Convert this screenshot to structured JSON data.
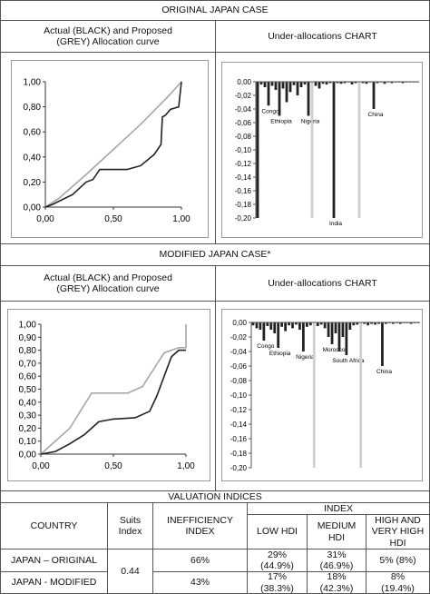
{
  "sections": [
    {
      "title": "ORIGINAL JAPAN CASE",
      "left_header": "Actual (BLACK) and Proposed (GREY) Allocation curve",
      "right_header": "Under-allocations CHART",
      "allocation_chart": {
        "type": "line",
        "xlim": [
          0,
          1
        ],
        "ylim": [
          0,
          1
        ],
        "xticks": [
          {
            "value": 0,
            "label": "0,00"
          },
          {
            "value": 0.5,
            "label": "0,50"
          },
          {
            "value": 1,
            "label": "1,00"
          }
        ],
        "yticks": [
          {
            "value": 0,
            "label": "0,00"
          },
          {
            "value": 0.2,
            "label": "0,20"
          },
          {
            "value": 0.4,
            "label": "0,40"
          },
          {
            "value": 0.6,
            "label": "0,60"
          },
          {
            "value": 0.8,
            "label": "0,80"
          },
          {
            "value": 1,
            "label": "1,00"
          }
        ],
        "series": [
          {
            "color": "#a6a6a6",
            "x": [
              0,
              0.1,
              0.3,
              0.5,
              0.7,
              0.9,
              1
            ],
            "values": [
              0,
              0.07,
              0.26,
              0.46,
              0.66,
              0.88,
              1
            ]
          },
          {
            "color": "#222222",
            "x": [
              0,
              0.05,
              0.2,
              0.25,
              0.3,
              0.35,
              0.4,
              0.6,
              0.7,
              0.8,
              0.85,
              0.86,
              0.88,
              0.92,
              0.98,
              1
            ],
            "values": [
              0,
              0.02,
              0.1,
              0.15,
              0.2,
              0.22,
              0.3,
              0.3,
              0.33,
              0.42,
              0.5,
              0.72,
              0.73,
              0.78,
              0.8,
              1
            ]
          }
        ]
      },
      "underallocation_chart": {
        "type": "bar",
        "ylim": [
          -0.2,
          0
        ],
        "yticks": [
          {
            "value": 0,
            "label": "0,00"
          },
          {
            "value": -0.02,
            "label": "-0,02"
          },
          {
            "value": -0.04,
            "label": "-0,04"
          },
          {
            "value": -0.06,
            "label": "-0,06"
          },
          {
            "value": -0.08,
            "label": "-0,08"
          },
          {
            "value": -0.1,
            "label": "-0,10"
          },
          {
            "value": -0.12,
            "label": "-0,12"
          },
          {
            "value": -0.14,
            "label": "-0,14"
          },
          {
            "value": -0.16,
            "label": "-0,16"
          },
          {
            "value": -0.18,
            "label": "-0,18"
          },
          {
            "value": -0.2,
            "label": "-0,20"
          }
        ],
        "categories": [
          null,
          null,
          null,
          "Congo",
          null,
          null,
          "Ethiopia",
          null,
          null,
          null,
          null,
          null,
          null,
          null,
          "Nigeria",
          null,
          null,
          null,
          null,
          null,
          null,
          "India",
          null,
          null,
          null,
          null,
          null,
          null,
          null,
          null,
          null,
          null,
          "China",
          null,
          null,
          null,
          null,
          null,
          null,
          null,
          null,
          null,
          null,
          null,
          null
        ],
        "values": [
          -0.2,
          -0.004,
          -0.008,
          -0.035,
          -0.006,
          -0.012,
          -0.05,
          -0.01,
          -0.03,
          -0.015,
          -0.005,
          -0.02,
          -0.008,
          -0.004,
          -0.05,
          -0.2,
          -0.006,
          -0.01,
          -0.003,
          -0.004,
          -0.002,
          -0.2,
          -0.002,
          -0.003,
          -0.002,
          -0.001,
          -0.004,
          -0.002,
          -0.2,
          -0.002,
          -0.003,
          -0.001,
          -0.04,
          -0.002,
          -0.001,
          -0.003,
          -0.001,
          -0.002,
          -0.001,
          -0.001,
          -0.002,
          -0.001,
          -0.001,
          -0.001,
          -0.001
        ],
        "bar_colors": [
          "#222222",
          "#222222",
          "#222222",
          "#222222",
          "#222222",
          "#222222",
          "#222222",
          "#222222",
          "#222222",
          "#222222",
          "#222222",
          "#222222",
          "#222222",
          "#222222",
          "#222222",
          "#cfcfcf",
          "#222222",
          "#222222",
          "#222222",
          "#222222",
          "#222222",
          "#222222",
          "#222222",
          "#222222",
          "#222222",
          "#222222",
          "#222222",
          "#222222",
          "#cfcfcf",
          "#222222",
          "#222222",
          "#222222",
          "#222222",
          "#222222",
          "#222222",
          "#222222",
          "#222222",
          "#222222",
          "#222222",
          "#222222",
          "#222222",
          "#222222",
          "#222222",
          "#222222",
          "#222222"
        ]
      }
    },
    {
      "title": "MODIFIED JAPAN CASE*",
      "left_header": "Actual (BLACK) and Proposed (GREY) Allocation curve",
      "right_header": "Under-allocations CHART",
      "allocation_chart": {
        "type": "line",
        "xlim": [
          0,
          1
        ],
        "ylim": [
          0,
          1
        ],
        "xticks": [
          {
            "value": 0,
            "label": "0,00"
          },
          {
            "value": 0.5,
            "label": "0,50"
          },
          {
            "value": 1,
            "label": "1,00"
          }
        ],
        "yticks": [
          {
            "value": 0,
            "label": "0,00"
          },
          {
            "value": 0.1,
            "label": "0,10"
          },
          {
            "value": 0.2,
            "label": "0,20"
          },
          {
            "value": 0.3,
            "label": "0,30"
          },
          {
            "value": 0.4,
            "label": "0,40"
          },
          {
            "value": 0.5,
            "label": "0,50"
          },
          {
            "value": 0.6,
            "label": "0,60"
          },
          {
            "value": 0.7,
            "label": "0,70"
          },
          {
            "value": 0.8,
            "label": "0,80"
          },
          {
            "value": 0.9,
            "label": "0,90"
          },
          {
            "value": 1,
            "label": "1,00"
          }
        ],
        "series": [
          {
            "color": "#a6a6a6",
            "x": [
              0,
              0.2,
              0.35,
              0.6,
              0.7,
              0.85,
              0.95,
              1,
              1
            ],
            "values": [
              0,
              0.2,
              0.47,
              0.47,
              0.52,
              0.78,
              0.82,
              0.82,
              1
            ]
          },
          {
            "color": "#222222",
            "x": [
              0,
              0.1,
              0.2,
              0.3,
              0.35,
              0.4,
              0.5,
              0.65,
              0.75,
              0.8,
              0.85,
              0.9,
              0.95,
              1
            ],
            "values": [
              0,
              0.02,
              0.08,
              0.15,
              0.2,
              0.25,
              0.27,
              0.28,
              0.33,
              0.45,
              0.6,
              0.75,
              0.8,
              0.8
            ]
          }
        ]
      },
      "underallocation_chart": {
        "type": "bar",
        "ylim": [
          -0.2,
          0
        ],
        "yticks": [
          {
            "value": 0,
            "label": "0,00"
          },
          {
            "value": -0.02,
            "label": "-0,02"
          },
          {
            "value": -0.04,
            "label": "-0,04"
          },
          {
            "value": -0.06,
            "label": "-0,06"
          },
          {
            "value": -0.08,
            "label": "-0,08"
          },
          {
            "value": -0.1,
            "label": "-0,10"
          },
          {
            "value": -0.12,
            "label": "-0,12"
          },
          {
            "value": -0.14,
            "label": "-0,14"
          },
          {
            "value": -0.16,
            "label": "-0,16"
          },
          {
            "value": -0.18,
            "label": "-0,18"
          },
          {
            "value": -0.2,
            "label": "-0,20"
          }
        ],
        "categories": [
          null,
          null,
          null,
          "Congo",
          null,
          null,
          null,
          "Ethiopia",
          null,
          null,
          null,
          null,
          null,
          null,
          "Nigeria",
          null,
          null,
          null,
          null,
          null,
          null,
          null,
          "Morocco",
          null,
          null,
          null,
          "South Africa",
          null,
          null,
          null,
          null,
          null,
          null,
          null,
          null,
          null,
          "China",
          null,
          null,
          null,
          null,
          null,
          null,
          null,
          null,
          null,
          null
        ],
        "values": [
          -0.004,
          -0.008,
          -0.01,
          -0.025,
          -0.005,
          -0.01,
          -0.015,
          -0.035,
          -0.006,
          -0.012,
          -0.004,
          -0.008,
          -0.003,
          -0.01,
          -0.04,
          -0.006,
          -0.004,
          -0.2,
          -0.005,
          -0.003,
          -0.008,
          -0.02,
          -0.03,
          -0.015,
          -0.04,
          -0.02,
          -0.045,
          -0.01,
          -0.004,
          -0.003,
          -0.2,
          -0.002,
          -0.004,
          -0.002,
          -0.003,
          -0.002,
          -0.06,
          -0.002,
          -0.001,
          -0.002,
          -0.001,
          -0.002,
          -0.001,
          -0.001,
          -0.002,
          -0.001,
          -0.001
        ],
        "bar_colors": [
          "#222222",
          "#222222",
          "#222222",
          "#222222",
          "#222222",
          "#222222",
          "#222222",
          "#222222",
          "#222222",
          "#222222",
          "#222222",
          "#222222",
          "#222222",
          "#222222",
          "#222222",
          "#222222",
          "#222222",
          "#cfcfcf",
          "#222222",
          "#222222",
          "#222222",
          "#222222",
          "#222222",
          "#222222",
          "#222222",
          "#222222",
          "#222222",
          "#222222",
          "#222222",
          "#222222",
          "#cfcfcf",
          "#222222",
          "#222222",
          "#222222",
          "#222222",
          "#222222",
          "#222222",
          "#222222",
          "#222222",
          "#222222",
          "#222222",
          "#222222",
          "#222222",
          "#222222",
          "#222222",
          "#222222",
          "#222222"
        ]
      }
    }
  ],
  "valuation": {
    "title": "VALUATION INDICES",
    "headers": {
      "country": "COUNTRY",
      "suits": "Suits Index",
      "inefficiency": "INEFFICIENCY INDEX",
      "index": "INDEX",
      "low": "LOW HDI",
      "medium": "MEDIUM HDI",
      "high": "HIGH AND VERY HIGH HDI"
    },
    "suits_value": "0.44",
    "rows": [
      [
        "JAPAN – ORIGINAL",
        "66%",
        "29% (44.9%)",
        "31% (46.9%)",
        "5% (8%)"
      ],
      [
        "JAPAN - MODIFIED",
        "43%",
        "17% (38.3%)",
        "18% (42.3%)",
        "8% (19.4%)"
      ]
    ]
  }
}
